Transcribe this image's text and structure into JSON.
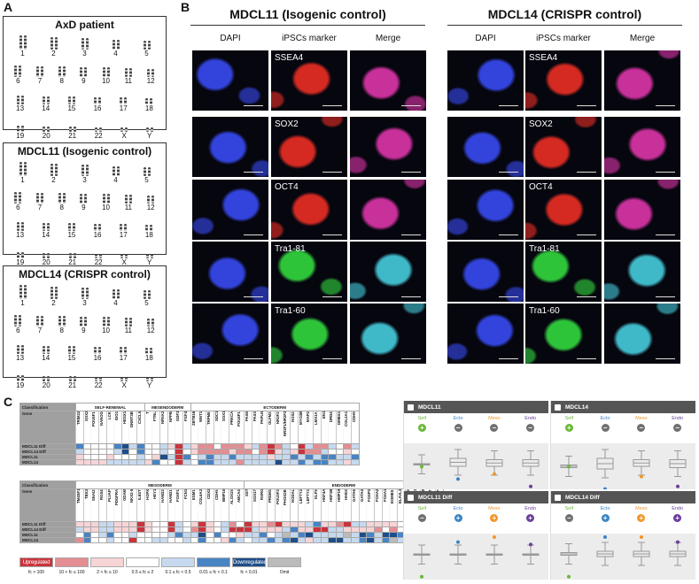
{
  "panelA": {
    "label": "A",
    "boxes": [
      {
        "title": "AxD patient"
      },
      {
        "title": "MDCL11 (Isogenic control)"
      },
      {
        "title": "MDCL14 (CRISPR control)"
      }
    ],
    "rows": [
      [
        "1",
        "2",
        "3",
        "4",
        "5"
      ],
      [
        "6",
        "7",
        "8",
        "9",
        "10",
        "11",
        "12"
      ],
      [
        "13",
        "14",
        "15",
        "16",
        "17",
        "18"
      ],
      [
        "19",
        "20",
        "21",
        "22",
        "X",
        "Y"
      ]
    ]
  },
  "panelB": {
    "label": "B",
    "groups": [
      "MDCL11 (Isogenic control)",
      "MDCL14 (CRISPR control)"
    ],
    "columns": [
      "DAPI",
      "iPSCs marker",
      "Merge"
    ],
    "markers": [
      "SSEA4",
      "SOX2",
      "OCT4",
      "Tra1-81",
      "Tra1-60"
    ],
    "colors": {
      "dapi": "#3344dd",
      "marker_red": "#d42a22",
      "marker_green": "#2ec43a",
      "merge_red": "#c8309a",
      "merge_green": "#3fb8c8"
    }
  },
  "panelC": {
    "label": "C",
    "classification_label": "Classification",
    "gene_label": "Gene",
    "samples": [
      "MDCL11 Diff",
      "MDCL14 Diff",
      "MDCL11",
      "MDCL14"
    ],
    "top": {
      "groups": [
        {
          "name": "SELF-RENEWAL",
          "genes": [
            "TRIM22",
            "SOX2",
            "POU5F1",
            "NANOG",
            "LCK",
            "IDO1",
            "HESX1",
            "DNMT3B",
            "CXCL5"
          ]
        },
        {
          "name": "MESENDODERM",
          "genes": [
            "T",
            "FTNL",
            "NR5A2",
            "NPPB",
            "GDF3",
            "FGF4"
          ]
        },
        {
          "name": "ECTODERM",
          "genes": [
            "ZBTB16",
            "WNT1",
            "TRPM8",
            "SDC1",
            "SOX1",
            "PRKCA",
            "POU4F1",
            "PAX6",
            "PAX3",
            "PAPLN",
            "OLFM3",
            "NR2F2",
            "NR2F1/NR2F2",
            "NOS2",
            "MYO3B",
            "MAP2",
            "LMX1A",
            "EN1",
            "DRD4",
            "DMBX1",
            "COL2A1",
            "CDH9"
          ]
        }
      ],
      "levels": [
        "BwwwwBDbBwwbpRbprrwrrrpbrRrbwRbrrbwrb",
        "bwwwwbDwBwwbwRwprrrrprrwrRpbpRrrbwwpw",
        "pwwwpwwwbwpDbRBwbBbbBbbbbpbbBbBbBBbbB",
        "ppppbbbbbpBwwRbwBBbbbrbbbbDbbBbBBbbpb"
      ]
    },
    "bottom": {
      "groups": [
        {
          "name": "MESODERM",
          "genes": [
            "TM4SF1",
            "TBX3",
            "SNAI2",
            "RGS4",
            "PLVAP",
            "PDGFRA",
            "ODAM",
            "NKX2-5",
            "IL6ST",
            "HOPX",
            "HEY1",
            "HAND2",
            "HAND1",
            "FOXF1",
            "FCN1",
            "ESM1",
            "COL6A3",
            "CDX2",
            "CDH5",
            "BMP10",
            "ALOX15",
            "ABCA4"
          ]
        },
        {
          "name": "ENDODERM",
          "genes": [
            "SST",
            "SOX17",
            "RXRG",
            "PRDM1",
            "POU3F3",
            "PHOX2B",
            "NODAL",
            "LEFTY2",
            "LEFTY1",
            "KLF5",
            "HNF4A",
            "HNF1B",
            "HMP19",
            "HHEX",
            "GATA6",
            "GATA4",
            "FOXP2",
            "FOXA2",
            "FOXA1",
            "EOMES",
            "ELAVL3",
            "CPLX2",
            "CLDN1",
            "CDH20",
            "CABP7",
            "AFP"
          ]
        }
      ],
      "levels": [
        "pppbbpppRpwwRbwpRpwbrwRpprRpppbBpprRbbppppwrwBwr",
        "bppbbpppRpwwRbwrRpwbRRRbpppbBppRRbbpppprwrwwBwbD",
        "wBwbBwwbwwwwbBbbDwBwwpbbBwbgbBDbbbbgbDBbDDBBbbBB",
        "rBwwbwwRwwbbwwbwBwwpBbwbbBbBDbpbbDDbbBDbBgbbbbBR"
      ]
    },
    "level_colors": {
      "R": "#c9343d",
      "r": "#e48d92",
      "p": "#f7d4d6",
      "w": "#ffffff",
      "b": "#c6d9ef",
      "B": "#4884c4",
      "D": "#1e4d8a",
      "g": "#bbbbbb"
    },
    "legend": [
      {
        "key": "R",
        "text": "Upregulated",
        "range": "fc > 100"
      },
      {
        "key": "r",
        "text": "",
        "range": "10 < fc ≤ 100"
      },
      {
        "key": "p",
        "text": "",
        "range": "2 < fc ≤ 10"
      },
      {
        "key": "w",
        "text": "",
        "range": "0.5 ≤ fc ≤ 2"
      },
      {
        "key": "b",
        "text": "",
        "range": "0.1 ≤ fc < 0.5"
      },
      {
        "key": "B",
        "text": "",
        "range": "0.01 ≤ fc < 0.1"
      },
      {
        "key": "D",
        "text": "Downregulated",
        "range": "fc < 0.01"
      },
      {
        "key": "g",
        "text": "",
        "range": "Omit"
      }
    ],
    "scorecard": {
      "categories": [
        "Self",
        "Ecto",
        "Meso",
        "Endo"
      ],
      "category_colors": [
        "#68b834",
        "#3a84c6",
        "#f0962c",
        "#6a3d9a"
      ],
      "panels": [
        {
          "title": "MDCL11",
          "states": [
            "up",
            "down",
            "down",
            "down"
          ]
        },
        {
          "title": "MDCL14",
          "states": [
            "up",
            "down",
            "down",
            "down"
          ]
        },
        {
          "title": "MDCL11 Diff",
          "states": [
            "down",
            "up",
            "up",
            "up"
          ]
        },
        {
          "title": "MDCL14 Diff",
          "states": [
            "down",
            "up",
            "up",
            "up"
          ]
        }
      ]
    }
  }
}
